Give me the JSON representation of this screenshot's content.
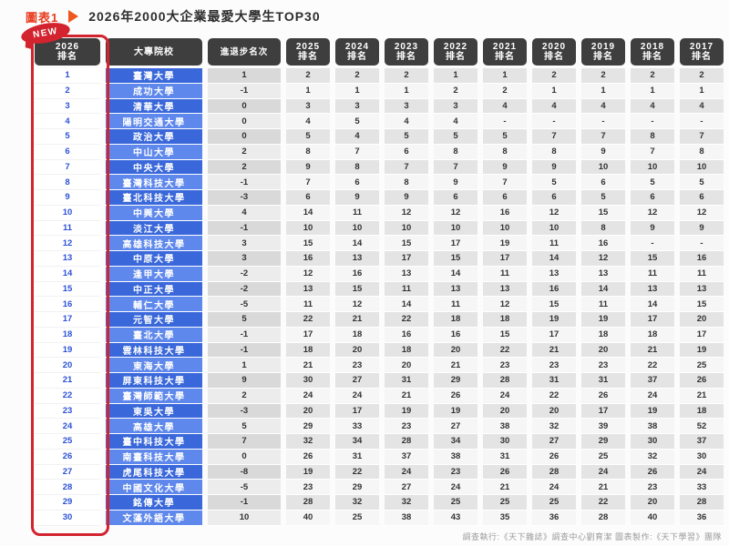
{
  "page": {
    "figure_label": "圖表1",
    "title": "2026年2000大企業最愛大學生TOP30",
    "new_badge": "NEW",
    "footer": "調查執行:《天下雜誌》調查中心劉育潔 圖表製作:《天下學習》團隊"
  },
  "colors": {
    "accent_red": "#d2232e",
    "label_red": "#e8391d",
    "triangle_orange": "#f0561e",
    "header_bg": "#3e3e3e",
    "school_odd": "#3a68da",
    "school_even": "#5f88ec",
    "rank_blue": "#2c52d6",
    "change_odd": "#d9d9d9",
    "change_even": "#ececec",
    "year_odd": "#e4e4e4",
    "year_even": "#f6f6f6",
    "text_dark": "#333333",
    "footer_gray": "#9a9a9a"
  },
  "chart_data": {
    "type": "table",
    "title": "2026年2000大企業最愛大學生TOP30",
    "columns": [
      {
        "id": "rank2026",
        "type": "rank",
        "label": "2026",
        "sub": "排名"
      },
      {
        "id": "school",
        "type": "school",
        "label": "大專院校"
      },
      {
        "id": "change",
        "type": "change",
        "label": "進退步名次"
      },
      {
        "id": "y2025",
        "type": "year",
        "label": "2025",
        "sub": "排名"
      },
      {
        "id": "y2024",
        "type": "year",
        "label": "2024",
        "sub": "排名"
      },
      {
        "id": "y2023",
        "type": "year",
        "label": "2023",
        "sub": "排名"
      },
      {
        "id": "y2022",
        "type": "year",
        "label": "2022",
        "sub": "排名"
      },
      {
        "id": "y2021",
        "type": "year",
        "label": "2021",
        "sub": "排名"
      },
      {
        "id": "y2020",
        "type": "year",
        "label": "2020",
        "sub": "排名"
      },
      {
        "id": "y2019",
        "type": "year",
        "label": "2019",
        "sub": "排名"
      },
      {
        "id": "y2018",
        "type": "year",
        "label": "2018",
        "sub": "排名"
      },
      {
        "id": "y2017",
        "type": "year",
        "label": "2017",
        "sub": "排名"
      }
    ],
    "rows": [
      {
        "rank": "1",
        "school": "臺灣大學",
        "change": "1",
        "years": [
          "2",
          "2",
          "2",
          "1",
          "1",
          "2",
          "2",
          "2",
          "2"
        ]
      },
      {
        "rank": "2",
        "school": "成功大學",
        "change": "-1",
        "years": [
          "1",
          "1",
          "1",
          "2",
          "2",
          "1",
          "1",
          "1",
          "1"
        ]
      },
      {
        "rank": "3",
        "school": "清華大學",
        "change": "0",
        "years": [
          "3",
          "3",
          "3",
          "3",
          "4",
          "4",
          "4",
          "4",
          "4"
        ]
      },
      {
        "rank": "4",
        "school": "陽明交通大學",
        "change": "0",
        "years": [
          "4",
          "5",
          "4",
          "4",
          "-",
          "-",
          "-",
          "-",
          "-"
        ]
      },
      {
        "rank": "5",
        "school": "政治大學",
        "change": "0",
        "years": [
          "5",
          "4",
          "5",
          "5",
          "5",
          "7",
          "7",
          "8",
          "7"
        ]
      },
      {
        "rank": "6",
        "school": "中山大學",
        "change": "2",
        "years": [
          "8",
          "7",
          "6",
          "8",
          "8",
          "8",
          "9",
          "7",
          "8"
        ]
      },
      {
        "rank": "7",
        "school": "中央大學",
        "change": "2",
        "years": [
          "9",
          "8",
          "7",
          "7",
          "9",
          "9",
          "10",
          "10",
          "10"
        ]
      },
      {
        "rank": "8",
        "school": "臺灣科技大學",
        "change": "-1",
        "years": [
          "7",
          "6",
          "8",
          "9",
          "7",
          "5",
          "6",
          "5",
          "5"
        ]
      },
      {
        "rank": "9",
        "school": "臺北科技大學",
        "change": "-3",
        "years": [
          "6",
          "9",
          "9",
          "6",
          "6",
          "6",
          "5",
          "6",
          "6"
        ]
      },
      {
        "rank": "10",
        "school": "中興大學",
        "change": "4",
        "years": [
          "14",
          "11",
          "12",
          "12",
          "16",
          "12",
          "15",
          "12",
          "12"
        ]
      },
      {
        "rank": "11",
        "school": "淡江大學",
        "change": "-1",
        "years": [
          "10",
          "10",
          "10",
          "10",
          "10",
          "10",
          "8",
          "9",
          "9"
        ]
      },
      {
        "rank": "12",
        "school": "高雄科技大學",
        "change": "3",
        "years": [
          "15",
          "14",
          "15",
          "17",
          "19",
          "11",
          "16",
          "-",
          "-"
        ]
      },
      {
        "rank": "13",
        "school": "中原大學",
        "change": "3",
        "years": [
          "16",
          "13",
          "17",
          "15",
          "17",
          "14",
          "12",
          "15",
          "16"
        ]
      },
      {
        "rank": "14",
        "school": "逢甲大學",
        "change": "-2",
        "years": [
          "12",
          "16",
          "13",
          "14",
          "11",
          "13",
          "13",
          "11",
          "11"
        ]
      },
      {
        "rank": "15",
        "school": "中正大學",
        "change": "-2",
        "years": [
          "13",
          "15",
          "11",
          "13",
          "13",
          "16",
          "14",
          "13",
          "13"
        ]
      },
      {
        "rank": "16",
        "school": "輔仁大學",
        "change": "-5",
        "years": [
          "11",
          "12",
          "14",
          "11",
          "12",
          "15",
          "11",
          "14",
          "15"
        ]
      },
      {
        "rank": "17",
        "school": "元智大學",
        "change": "5",
        "years": [
          "22",
          "21",
          "22",
          "18",
          "18",
          "19",
          "19",
          "17",
          "20"
        ]
      },
      {
        "rank": "18",
        "school": "臺北大學",
        "change": "-1",
        "years": [
          "17",
          "18",
          "16",
          "16",
          "15",
          "17",
          "18",
          "18",
          "17"
        ]
      },
      {
        "rank": "19",
        "school": "雲林科技大學",
        "change": "-1",
        "years": [
          "18",
          "20",
          "18",
          "20",
          "22",
          "21",
          "20",
          "21",
          "19"
        ]
      },
      {
        "rank": "20",
        "school": "東海大學",
        "change": "1",
        "years": [
          "21",
          "23",
          "20",
          "21",
          "23",
          "23",
          "23",
          "22",
          "25"
        ]
      },
      {
        "rank": "21",
        "school": "屏東科技大學",
        "change": "9",
        "years": [
          "30",
          "27",
          "31",
          "29",
          "28",
          "31",
          "31",
          "37",
          "26"
        ]
      },
      {
        "rank": "22",
        "school": "臺灣師範大學",
        "change": "2",
        "years": [
          "24",
          "24",
          "21",
          "26",
          "24",
          "22",
          "26",
          "24",
          "21"
        ]
      },
      {
        "rank": "23",
        "school": "東吳大學",
        "change": "-3",
        "years": [
          "20",
          "17",
          "19",
          "19",
          "20",
          "20",
          "17",
          "19",
          "18"
        ]
      },
      {
        "rank": "24",
        "school": "高雄大學",
        "change": "5",
        "years": [
          "29",
          "33",
          "23",
          "27",
          "38",
          "32",
          "39",
          "38",
          "52"
        ]
      },
      {
        "rank": "25",
        "school": "臺中科技大學",
        "change": "7",
        "years": [
          "32",
          "34",
          "28",
          "34",
          "30",
          "27",
          "29",
          "30",
          "37"
        ]
      },
      {
        "rank": "26",
        "school": "南臺科技大學",
        "change": "0",
        "years": [
          "26",
          "31",
          "37",
          "38",
          "31",
          "26",
          "25",
          "32",
          "30"
        ]
      },
      {
        "rank": "27",
        "school": "虎尾科技大學",
        "change": "-8",
        "years": [
          "19",
          "22",
          "24",
          "23",
          "26",
          "28",
          "24",
          "26",
          "24"
        ]
      },
      {
        "rank": "28",
        "school": "中國文化大學",
        "change": "-5",
        "years": [
          "23",
          "29",
          "27",
          "24",
          "21",
          "24",
          "21",
          "23",
          "33"
        ]
      },
      {
        "rank": "29",
        "school": "銘傳大學",
        "change": "-1",
        "years": [
          "28",
          "32",
          "32",
          "25",
          "25",
          "25",
          "22",
          "20",
          "28"
        ]
      },
      {
        "rank": "30",
        "school": "文藻外語大學",
        "change": "10",
        "years": [
          "40",
          "25",
          "38",
          "43",
          "35",
          "36",
          "28",
          "40",
          "36"
        ]
      }
    ]
  }
}
